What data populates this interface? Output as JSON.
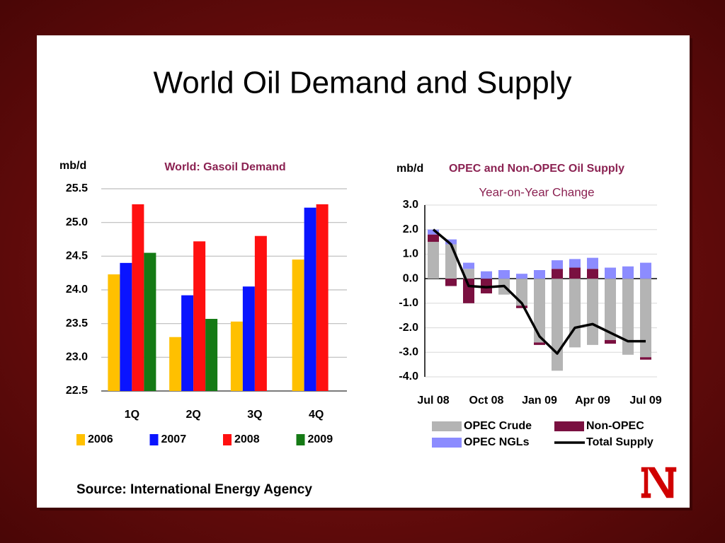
{
  "title": "World Oil Demand and Supply",
  "source": "Source: International Energy Agency",
  "chart_data": [
    {
      "type": "bar",
      "title": "World:  Gasoil Demand",
      "ylabel": "mb/d",
      "categories": [
        "1Q",
        "2Q",
        "3Q",
        "4Q"
      ],
      "series": [
        {
          "name": "2006",
          "color": "#ffc000",
          "values": [
            24.23,
            23.3,
            23.53,
            24.45
          ]
        },
        {
          "name": "2007",
          "color": "#0a14ff",
          "values": [
            24.4,
            23.92,
            24.05,
            25.22
          ]
        },
        {
          "name": "2008",
          "color": "#ff1010",
          "values": [
            25.27,
            24.72,
            24.8,
            25.27
          ]
        },
        {
          "name": "2009",
          "color": "#157a15",
          "values": [
            24.55,
            23.57,
            null,
            null
          ]
        }
      ],
      "ylim": [
        22.5,
        25.5
      ],
      "yticks": [
        22.5,
        {
          "value": 23,
          "label": "23.0"
        },
        23.5,
        {
          "value": 24,
          "label": "24.0"
        },
        24.5,
        {
          "value": 25,
          "label": "25.0"
        },
        25.5
      ],
      "grid": true
    },
    {
      "type": "stacked_bar",
      "title": "OPEC and Non-OPEC Oil Supply",
      "subtitle": "Year-on-Year Change",
      "ylabel": "mb/d",
      "categories": [
        "Jul 08",
        null,
        null,
        "Oct 08",
        null,
        null,
        "Jan 09",
        null,
        null,
        "Apr 09",
        null,
        null,
        "Jul 09"
      ],
      "series": [
        {
          "name": "OPEC Crude",
          "color": "#b4b4b4",
          "values": [
            1.5,
            1.4,
            0.4,
            0,
            -0.65,
            -1.1,
            -2.6,
            -3.75,
            -2.8,
            -2.7,
            -2.5,
            -3.1,
            -3.2
          ]
        },
        {
          "name": "Non-OPEC",
          "color": "#7a1040",
          "values": [
            0.3,
            -0.3,
            -1.0,
            -0.6,
            0,
            -0.1,
            -0.1,
            0.4,
            0.45,
            0.4,
            -0.15,
            0,
            -0.1
          ]
        },
        {
          "name": "OPEC NGLs",
          "color": "#8c8cff",
          "values": [
            0.2,
            0.2,
            0.25,
            0.3,
            0.35,
            0.2,
            0.35,
            0.35,
            0.35,
            0.45,
            0.45,
            0.5,
            0.65
          ]
        },
        {
          "name": "Total Supply",
          "color": "#000000",
          "type": "line",
          "values": [
            2.0,
            1.4,
            -0.3,
            -0.35,
            -0.3,
            -1.0,
            -2.35,
            -3.05,
            -2.0,
            -1.85,
            -2.2,
            -2.55,
            -2.55
          ]
        }
      ],
      "ylim": [
        -4,
        3
      ],
      "yticks": [
        {
          "value": 3,
          "label": "3.0"
        },
        {
          "value": 2,
          "label": "2.0"
        },
        {
          "value": 1,
          "label": "1.0"
        },
        {
          "value": 0,
          "label": "0.0"
        },
        {
          "value": -1,
          "label": "-1.0"
        },
        {
          "value": -2,
          "label": "-2.0"
        },
        {
          "value": -3,
          "label": "-3.0"
        },
        {
          "value": -4,
          "label": "-4.0"
        }
      ],
      "grid": true
    }
  ]
}
